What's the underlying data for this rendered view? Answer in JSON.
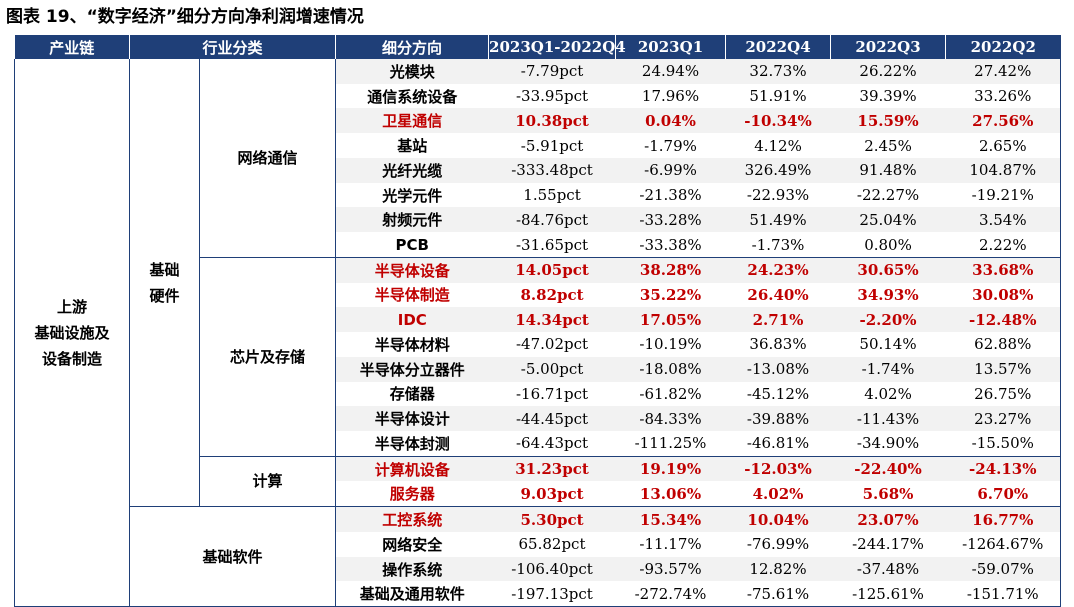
{
  "title": "图表 19、“数字经济”细分方向净利润增速情况",
  "headers": [
    "产业链",
    "行业分类",
    "细分方向",
    "2023Q1-2022Q4",
    "2023Q1",
    "2022Q4",
    "2022Q3",
    "2022Q2"
  ],
  "chain": "上游\n基础设施及\n设备制造",
  "hardware_group": "基础\n硬件",
  "software_group": "基础软件",
  "subgroups": {
    "network": "网络通信",
    "chips": "芯片及存储",
    "compute": "计算"
  },
  "highlight_color": "#c00000",
  "header_color": "#1f3f78",
  "rows": [
    {
      "name": "光模块",
      "values": [
        "-7.79pct",
        "24.94%",
        "32.73%",
        "26.22%",
        "27.42%"
      ],
      "highlight": false
    },
    {
      "name": "通信系统设备",
      "values": [
        "-33.95pct",
        "17.96%",
        "51.91%",
        "39.39%",
        "33.26%"
      ],
      "highlight": false
    },
    {
      "name": "卫星通信",
      "values": [
        "10.38pct",
        "0.04%",
        "-10.34%",
        "15.59%",
        "27.56%"
      ],
      "highlight": true
    },
    {
      "name": "基站",
      "values": [
        "-5.91pct",
        "-1.79%",
        "4.12%",
        "2.45%",
        "2.65%"
      ],
      "highlight": false
    },
    {
      "name": "光纤光缆",
      "values": [
        "-333.48pct",
        "-6.99%",
        "326.49%",
        "91.48%",
        "104.87%"
      ],
      "highlight": false
    },
    {
      "name": "光学元件",
      "values": [
        "1.55pct",
        "-21.38%",
        "-22.93%",
        "-22.27%",
        "-19.21%"
      ],
      "highlight": false
    },
    {
      "name": "射频元件",
      "values": [
        "-84.76pct",
        "-33.28%",
        "51.49%",
        "25.04%",
        "3.54%"
      ],
      "highlight": false
    },
    {
      "name": "PCB",
      "values": [
        "-31.65pct",
        "-33.38%",
        "-1.73%",
        "0.80%",
        "2.22%"
      ],
      "highlight": false
    },
    {
      "name": "半导体设备",
      "values": [
        "14.05pct",
        "38.28%",
        "24.23%",
        "30.65%",
        "33.68%"
      ],
      "highlight": true
    },
    {
      "name": "半导体制造",
      "values": [
        "8.82pct",
        "35.22%",
        "26.40%",
        "34.93%",
        "30.08%"
      ],
      "highlight": true
    },
    {
      "name": "IDC",
      "values": [
        "14.34pct",
        "17.05%",
        "2.71%",
        "-2.20%",
        "-12.48%"
      ],
      "highlight": true
    },
    {
      "name": "半导体材料",
      "values": [
        "-47.02pct",
        "-10.19%",
        "36.83%",
        "50.14%",
        "62.88%"
      ],
      "highlight": false
    },
    {
      "name": "半导体分立器件",
      "values": [
        "-5.00pct",
        "-18.08%",
        "-13.08%",
        "-1.74%",
        "13.57%"
      ],
      "highlight": false
    },
    {
      "name": "存储器",
      "values": [
        "-16.71pct",
        "-61.82%",
        "-45.12%",
        "4.02%",
        "26.75%"
      ],
      "highlight": false
    },
    {
      "name": "半导体设计",
      "values": [
        "-44.45pct",
        "-84.33%",
        "-39.88%",
        "-11.43%",
        "23.27%"
      ],
      "highlight": false
    },
    {
      "name": "半导体封测",
      "values": [
        "-64.43pct",
        "-111.25%",
        "-46.81%",
        "-34.90%",
        "-15.50%"
      ],
      "highlight": false
    },
    {
      "name": "计算机设备",
      "values": [
        "31.23pct",
        "19.19%",
        "-12.03%",
        "-22.40%",
        "-24.13%"
      ],
      "highlight": true
    },
    {
      "name": "服务器",
      "values": [
        "9.03pct",
        "13.06%",
        "4.02%",
        "5.68%",
        "6.70%"
      ],
      "highlight": true
    },
    {
      "name": "工控系统",
      "values": [
        "5.30pct",
        "15.34%",
        "10.04%",
        "23.07%",
        "16.77%"
      ],
      "highlight": true
    },
    {
      "name": "网络安全",
      "values": [
        "65.82pct",
        "-11.17%",
        "-76.99%",
        "-244.17%",
        "-1264.67%"
      ],
      "highlight": false
    },
    {
      "name": "操作系统",
      "values": [
        "-106.40pct",
        "-93.57%",
        "12.82%",
        "-37.48%",
        "-59.07%"
      ],
      "highlight": false
    },
    {
      "name": "基础及通用软件",
      "values": [
        "-197.13pct",
        "-272.74%",
        "-75.61%",
        "-125.61%",
        "-151.71%"
      ],
      "highlight": false
    }
  ]
}
